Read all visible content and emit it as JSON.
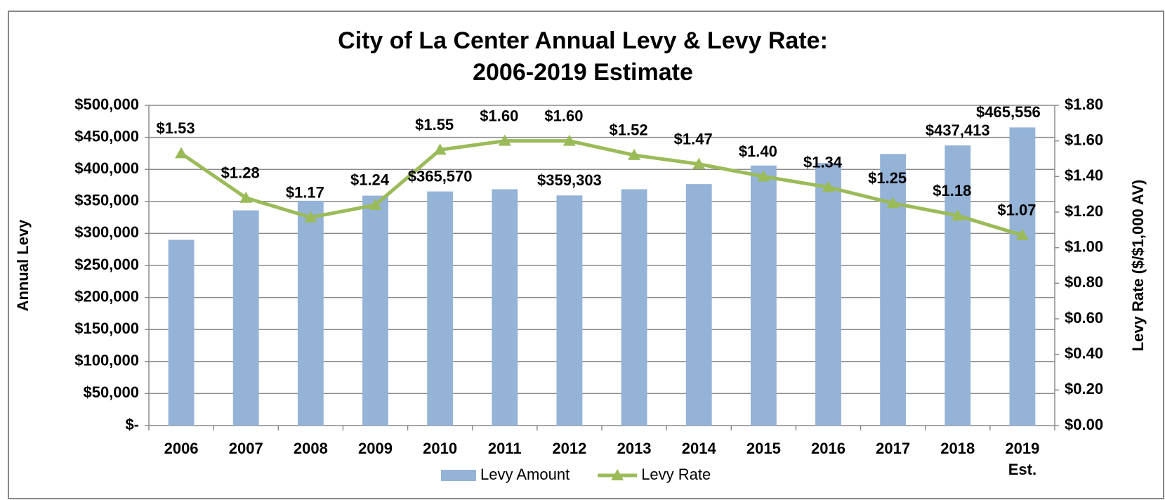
{
  "chart_data": {
    "type": "bar",
    "title": [
      "City of La Center Annual Levy & Levy Rate:",
      "2006-2019 Estimate"
    ],
    "y_label": "Annual Levy",
    "y2_label": "Levy Rate ($/$1,000 AV)",
    "categories": [
      "2006",
      "2007",
      "2008",
      "2009",
      "2010",
      "2011",
      "2012",
      "2013",
      "2014",
      "2015",
      "2016",
      "2017",
      "2018",
      "2019 Est."
    ],
    "series": [
      {
        "name": "Levy Amount",
        "type": "bar",
        "color": "#95b3d7",
        "values": [
          290000,
          336000,
          351000,
          359000,
          365570,
          369000,
          359303,
          369000,
          377000,
          406000,
          410000,
          424000,
          437413,
          465556
        ],
        "value_labels": [
          null,
          null,
          null,
          null,
          "$365,570",
          null,
          "$359,303",
          null,
          null,
          null,
          null,
          null,
          "$437,413",
          "$465,556"
        ]
      },
      {
        "name": "Levy Rate",
        "type": "line",
        "axis": "y2",
        "color": "#9bbb59",
        "values": [
          1.53,
          1.28,
          1.17,
          1.24,
          1.55,
          1.6,
          1.6,
          1.52,
          1.47,
          1.4,
          1.34,
          1.25,
          1.18,
          1.07
        ],
        "value_labels": [
          "$1.53",
          "$1.28",
          "$1.17",
          "$1.24",
          "$1.55",
          "$1.60",
          "$1.60",
          "$1.52",
          "$1.47",
          "$1.40",
          "$1.34",
          "$1.25",
          "$1.18",
          "$1.07"
        ]
      }
    ],
    "ylim": [
      0,
      500000
    ],
    "yticks": [
      {
        "value": 0,
        "label": "$-"
      },
      {
        "value": 50000,
        "label": "$50,000"
      },
      {
        "value": 100000,
        "label": "$100,000"
      },
      {
        "value": 150000,
        "label": "$150,000"
      },
      {
        "value": 200000,
        "label": "$200,000"
      },
      {
        "value": 250000,
        "label": "$250,000"
      },
      {
        "value": 300000,
        "label": "$300,000"
      },
      {
        "value": 350000,
        "label": "$350,000"
      },
      {
        "value": 400000,
        "label": "$400,000"
      },
      {
        "value": 450000,
        "label": "$450,000"
      },
      {
        "value": 500000,
        "label": "$500,000"
      }
    ],
    "y2lim": [
      0,
      1.8
    ],
    "y2ticks": [
      {
        "value": 0,
        "label": "$0.00"
      },
      {
        "value": 0.2,
        "label": "$0.20"
      },
      {
        "value": 0.4,
        "label": "$0.40"
      },
      {
        "value": 0.6,
        "label": "$0.60"
      },
      {
        "value": 0.8,
        "label": "$0.80"
      },
      {
        "value": 1.0,
        "label": "$1.00"
      },
      {
        "value": 1.2,
        "label": "$1.20"
      },
      {
        "value": 1.4,
        "label": "$1.40"
      },
      {
        "value": 1.6,
        "label": "$1.60"
      },
      {
        "value": 1.8,
        "label": "$1.80"
      }
    ],
    "grid": true,
    "legend": "bottom"
  }
}
